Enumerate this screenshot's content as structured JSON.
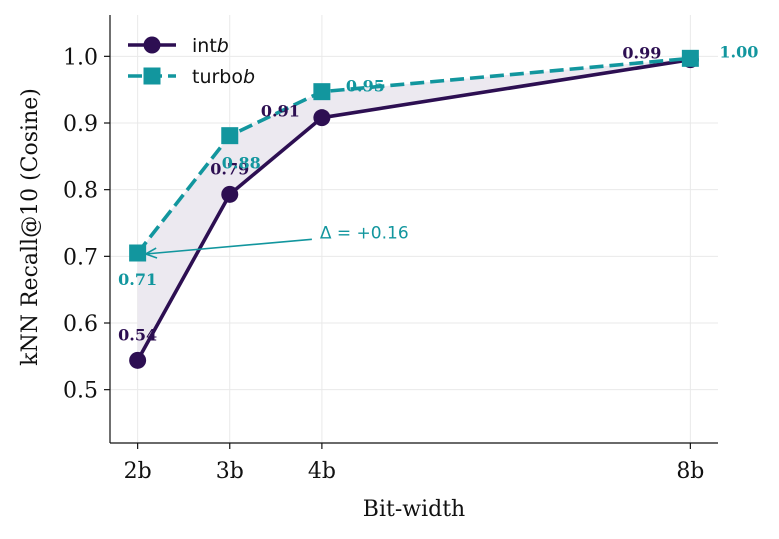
{
  "chart_data": {
    "type": "line",
    "xlabel": "Bit-width",
    "ylabel": "kNN Recall@10 (Cosine)",
    "x": [
      2,
      3,
      4,
      8
    ],
    "x_tick_labels": [
      "2b",
      "3b",
      "4b",
      "8b"
    ],
    "y_ticks": [
      0.5,
      0.6,
      0.7,
      0.8,
      0.9,
      1.0
    ],
    "y_tick_labels": [
      "0.5",
      "0.6",
      "0.7",
      "0.8",
      "0.9",
      "1.0"
    ],
    "xlim": [
      1.7,
      8.3
    ],
    "ylim": [
      0.42,
      1.062
    ],
    "grid": true,
    "legend_position": "top-left",
    "shaded_region_between_series": true,
    "series": [
      {
        "name": "int",
        "name_italic_suffix": "b",
        "values": [
          0.544,
          0.793,
          0.908,
          0.995
        ],
        "labels": [
          "0.54",
          "0.79",
          "0.91",
          "0.99"
        ],
        "color": "#2d0f52",
        "marker": "circle",
        "line_style": "solid"
      },
      {
        "name": "turbo",
        "name_italic_suffix": "b",
        "values": [
          0.705,
          0.881,
          0.947,
          0.997
        ],
        "labels": [
          "0.71",
          "0.88",
          "0.95",
          "1.00"
        ],
        "color": "#12969e",
        "marker": "square",
        "line_style": "dashed"
      }
    ],
    "fill_color": "#ece9f0",
    "annotation": {
      "text": "Δ = +0.16",
      "points_to_x": 2,
      "points_to_y": 0.705,
      "text_x": 4.0,
      "text_y": 0.733,
      "color": "#12969e"
    }
  }
}
